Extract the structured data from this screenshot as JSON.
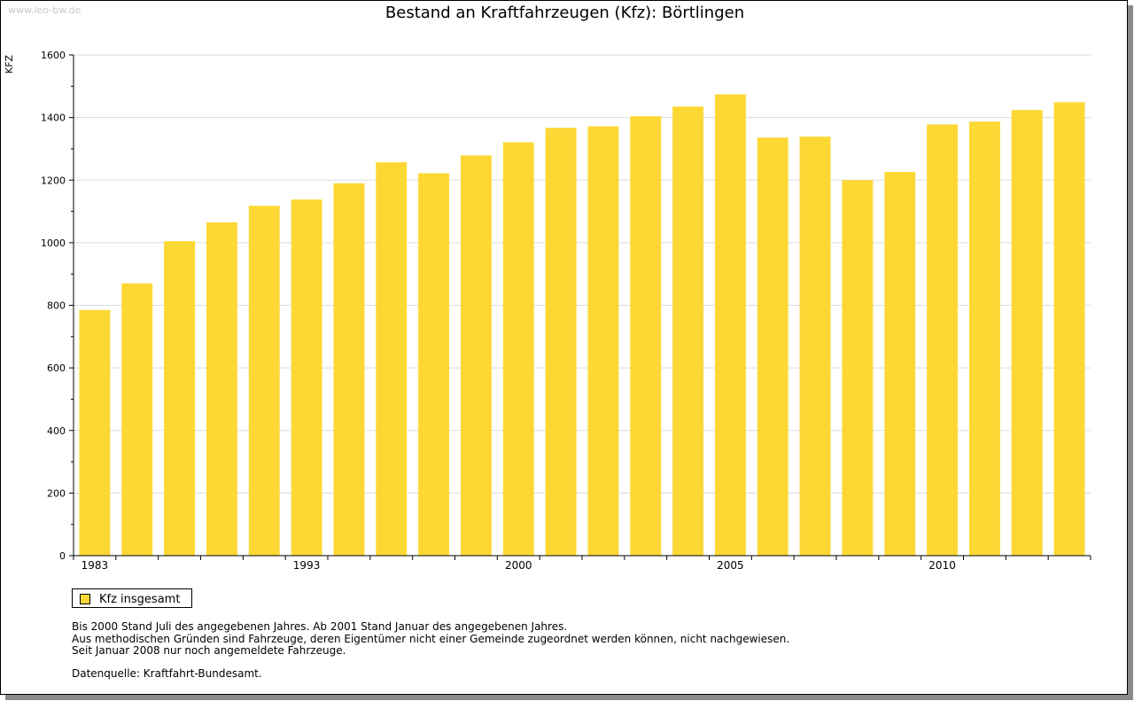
{
  "watermark": "www.leo-bw.de",
  "legend": {
    "label": "Kfz insgesamt"
  },
  "notes": [
    "Bis 2000 Stand Juli des angegebenen Jahres. Ab 2001 Stand Januar des angegebenen Jahres.",
    "Aus methodischen Gründen sind Fahrzeuge, deren Eigentümer nicht einer Gemeinde zugeordnet werden können, nicht nachgewiesen.",
    "Seit Januar 2008 nur noch angemeldete Fahrzeuge."
  ],
  "source": "Datenquelle: Kraftfahrt-Bundesamt.",
  "colors": {
    "bar": "#fdd835",
    "grid": "#dcdcdc",
    "axis": "#000000"
  },
  "chart_data": {
    "type": "bar",
    "title": "Bestand an Kraftfahrzeugen (Kfz): Börtlingen",
    "xlabel": "",
    "ylabel": "KFZ",
    "ylim": [
      0,
      1600
    ],
    "yticks": [
      0,
      200,
      400,
      600,
      800,
      1000,
      1200,
      1400,
      1600
    ],
    "grid": true,
    "legend_position": "bottom-left",
    "series": [
      {
        "name": "Kfz insgesamt",
        "values": [
          785,
          870,
          1005,
          1065,
          1118,
          1138,
          1190,
          1257,
          1222,
          1279,
          1321,
          1367,
          1372,
          1404,
          1435,
          1474,
          1336,
          1339,
          1200,
          1226,
          1378,
          1387,
          1424,
          1449
        ]
      }
    ],
    "tick_labels": [
      {
        "index": 0,
        "label": "1983"
      },
      {
        "index": 5,
        "label": "1993"
      },
      {
        "index": 10,
        "label": "2000"
      },
      {
        "index": 15,
        "label": "2005"
      },
      {
        "index": 20,
        "label": "2010"
      }
    ]
  }
}
